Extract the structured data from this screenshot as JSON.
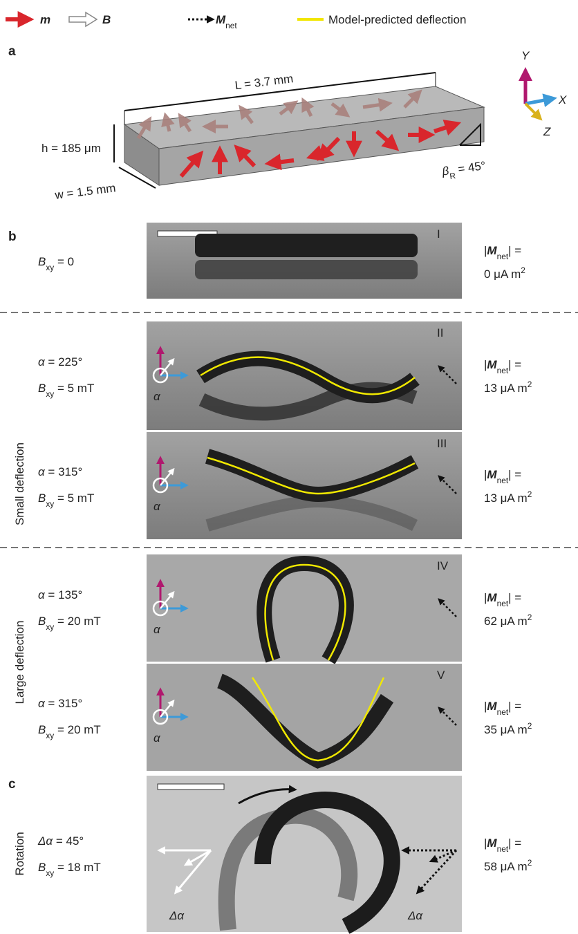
{
  "legend": [
    {
      "symbol": "m"
    },
    {
      "symbol": "B"
    },
    {
      "symbol": "M",
      "sub": "net"
    },
    {
      "text": "Model-predicted deflection"
    }
  ],
  "panel_a": {
    "label": "a",
    "length": "L = 3.7 mm",
    "height": "h = 185 μm",
    "width": "w = 1.5 mm",
    "angle": {
      "symbol": "β",
      "sub": "R",
      "text": " = 45°"
    },
    "axes": [
      "Y",
      "X",
      "Z"
    ]
  },
  "panel_b": {
    "label": "b",
    "groups": [
      "Small deflection",
      "Large deflection"
    ],
    "rows": [
      {
        "frame": "I",
        "conditions": [
          {
            "symbol": "B",
            "sub": "xy",
            "text": " = 0"
          }
        ],
        "moment": {
          "open": "|",
          "symbol": "M",
          "sub": "net",
          "close": "| =",
          "amount": "0 μA m",
          "exp": "2"
        }
      },
      {
        "frame": "II",
        "conditions": [
          {
            "symbol": "α",
            "text": " = 225°"
          },
          {
            "symbol": "B",
            "sub": "xy",
            "text": " = 5 mT"
          }
        ],
        "moment": {
          "open": "|",
          "symbol": "M",
          "sub": "net",
          "close": "| =",
          "amount": "13 μA m",
          "exp": "2"
        },
        "angle_mark": "α"
      },
      {
        "frame": "III",
        "conditions": [
          {
            "symbol": "α",
            "text": " = 315°"
          },
          {
            "symbol": "B",
            "sub": "xy",
            "text": " = 5 mT"
          }
        ],
        "moment": {
          "open": "|",
          "symbol": "M",
          "sub": "net",
          "close": "| =",
          "amount": "13 μA m",
          "exp": "2"
        },
        "angle_mark": "α"
      },
      {
        "frame": "IV",
        "conditions": [
          {
            "symbol": "α",
            "text": " = 135°"
          },
          {
            "symbol": "B",
            "sub": "xy",
            "text": " = 20 mT"
          }
        ],
        "moment": {
          "open": "|",
          "symbol": "M",
          "sub": "net",
          "close": "| =",
          "amount": "62 μA m",
          "exp": "2"
        },
        "angle_mark": "α"
      },
      {
        "frame": "V",
        "conditions": [
          {
            "symbol": "α",
            "text": " = 315°"
          },
          {
            "symbol": "B",
            "sub": "xy",
            "text": " = 20 mT"
          }
        ],
        "moment": {
          "open": "|",
          "symbol": "M",
          "sub": "net",
          "close": "| =",
          "amount": "35 μA m",
          "exp": "2"
        },
        "angle_mark": "α"
      }
    ]
  },
  "panel_c": {
    "label": "c",
    "group": "Rotation",
    "conditions": [
      {
        "symbol": "Δα",
        "text": " = 45°"
      },
      {
        "symbol": "B",
        "sub": "xy",
        "text": " = 18 mT"
      }
    ],
    "moment": {
      "open": "|",
      "symbol": "M",
      "sub": "net",
      "close": "| =",
      "amount": "58 μA m",
      "exp": "2"
    },
    "angle_marks": [
      "Δα",
      "Δα"
    ]
  }
}
